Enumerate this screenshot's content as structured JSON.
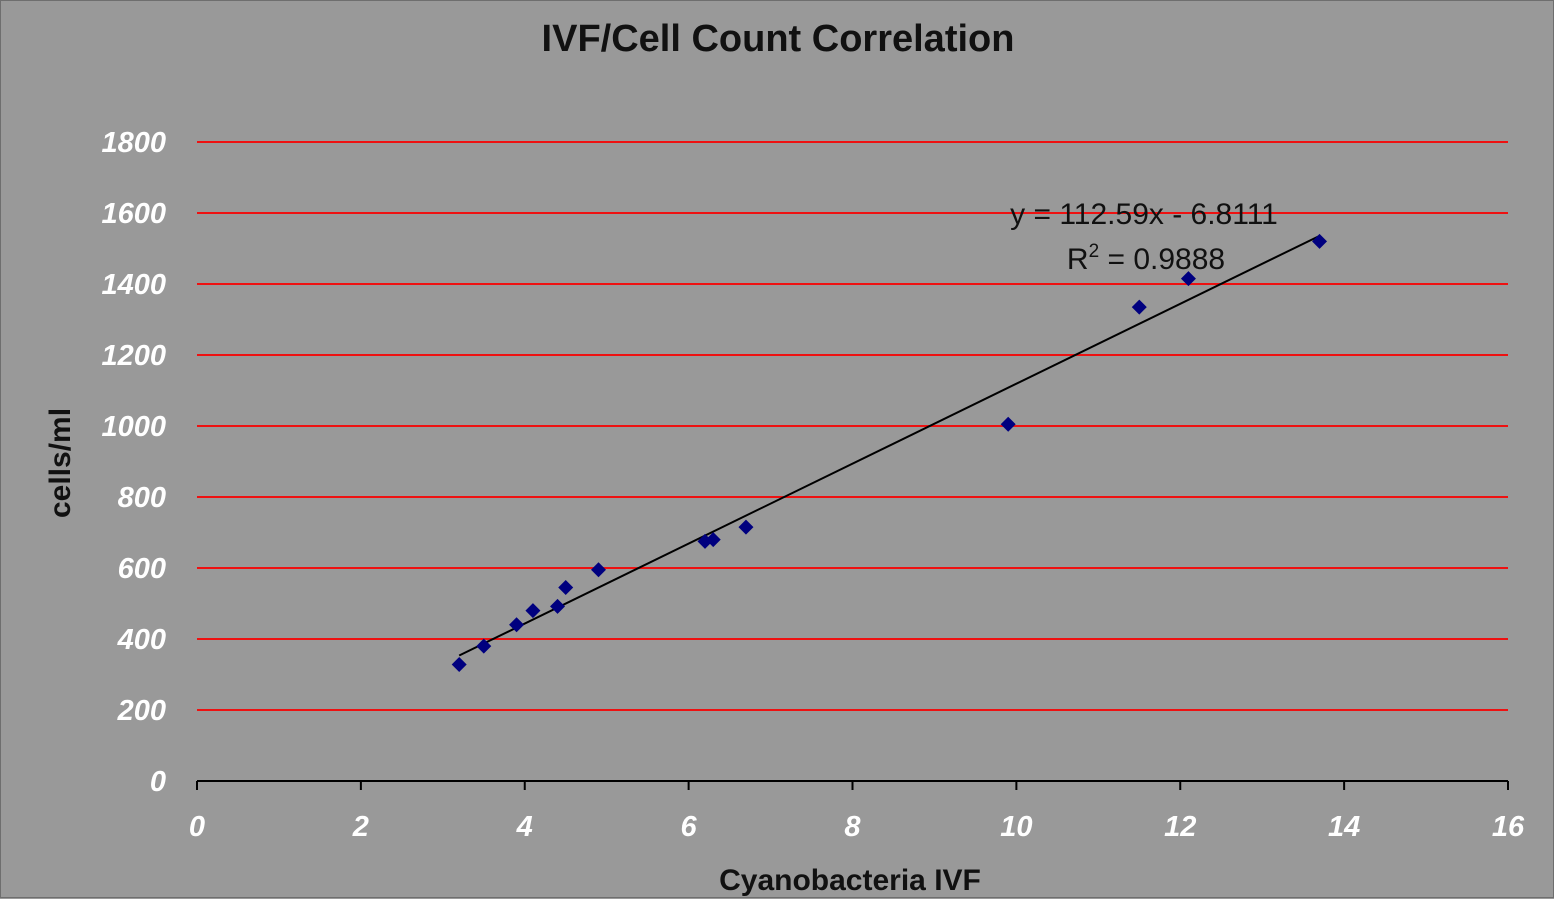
{
  "chart_data": {
    "type": "scatter",
    "title": "IVF/Cell Count Correlation",
    "xlabel": "Cyanobacteria IVF",
    "ylabel": "cells/ml",
    "xlim": [
      0,
      16
    ],
    "ylim": [
      0,
      1800
    ],
    "x_ticks": [
      0,
      2,
      4,
      6,
      8,
      10,
      12,
      14,
      16
    ],
    "y_ticks": [
      0,
      200,
      400,
      600,
      800,
      1000,
      1200,
      1400,
      1600,
      1800
    ],
    "grid": "horizontal",
    "colors": {
      "background": "#999999",
      "gridline": "#ee1111",
      "marker": "#00007f",
      "trendline": "#000000",
      "tick_labels": "#ffffff"
    },
    "series": [
      {
        "marker": "diamond",
        "points": [
          {
            "x": 3.2,
            "y": 328
          },
          {
            "x": 3.5,
            "y": 380
          },
          {
            "x": 3.9,
            "y": 440
          },
          {
            "x": 4.1,
            "y": 480
          },
          {
            "x": 4.4,
            "y": 492
          },
          {
            "x": 4.5,
            "y": 545
          },
          {
            "x": 4.9,
            "y": 595
          },
          {
            "x": 6.2,
            "y": 675
          },
          {
            "x": 6.3,
            "y": 680
          },
          {
            "x": 6.7,
            "y": 715
          },
          {
            "x": 9.9,
            "y": 1005
          },
          {
            "x": 11.5,
            "y": 1335
          },
          {
            "x": 12.1,
            "y": 1415
          },
          {
            "x": 13.7,
            "y": 1520
          }
        ]
      }
    ],
    "trendline": {
      "type": "linear",
      "slope": 112.59,
      "intercept": -6.8111,
      "x_range": [
        3.2,
        13.7
      ],
      "equation_text": "y = 112.59x - 6.8111",
      "r2_prefix": "R",
      "r2_sup": "2",
      "r2_suffix": " = 0.9888"
    }
  }
}
